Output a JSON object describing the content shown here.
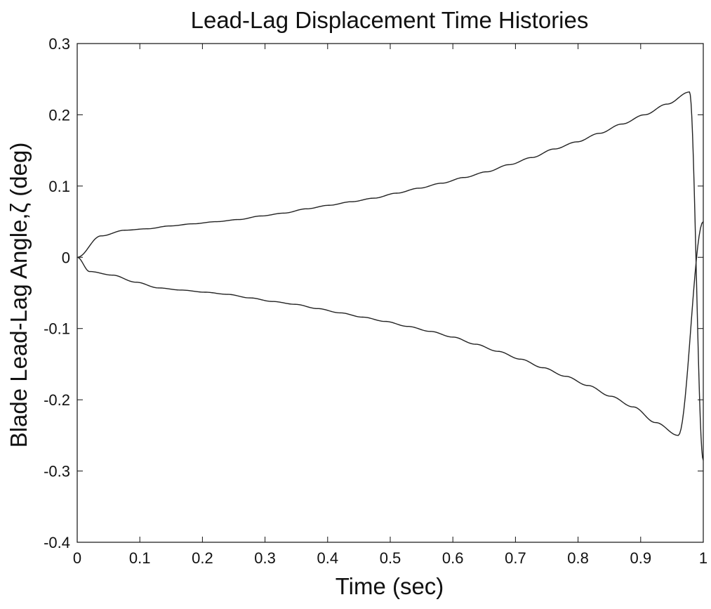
{
  "chart_data": {
    "type": "line",
    "title": "Lead-Lag Displacement Time Histories",
    "xlabel": "Time (sec)",
    "ylabel": "Blade Lead-Lag Angle,ζ  (deg)",
    "xlim": [
      0,
      1
    ],
    "ylim": [
      -0.4,
      0.3
    ],
    "xticks": [
      "0",
      "0.1",
      "0.2",
      "0.3",
      "0.4",
      "0.5",
      "0.6",
      "0.7",
      "0.8",
      "0.9",
      "1"
    ],
    "xtick_values": [
      0,
      0.1,
      0.2,
      0.3,
      0.4,
      0.5,
      0.6,
      0.7,
      0.8,
      0.9,
      1
    ],
    "yticks": [
      "0.3",
      "0.2",
      "0.1",
      "0",
      "-0.1",
      "-0.2",
      "-0.3",
      "-0.4"
    ],
    "ytick_values": [
      0.3,
      0.2,
      0.1,
      0,
      -0.1,
      -0.2,
      -0.3,
      -0.4
    ],
    "grid": false,
    "series_color": "#222222",
    "series": [
      {
        "x": [
          0,
          0.038,
          0.076,
          0.112,
          0.148,
          0.185,
          0.222,
          0.258,
          0.294,
          0.33,
          0.366,
          0.402,
          0.438,
          0.474,
          0.51,
          0.546,
          0.582,
          0.618,
          0.654,
          0.69,
          0.726,
          0.762,
          0.798,
          0.834,
          0.87,
          0.906,
          0.942,
          0.978,
          1.0
        ],
        "y": [
          0,
          0.03,
          0.038,
          0.04,
          0.044,
          0.047,
          0.05,
          0.053,
          0.058,
          0.062,
          0.068,
          0.073,
          0.078,
          0.083,
          0.09,
          0.097,
          0.104,
          0.112,
          0.12,
          0.13,
          0.14,
          0.152,
          0.162,
          0.174,
          0.187,
          0.2,
          0.215,
          0.232,
          -0.285
        ]
      },
      {
        "x": [
          0,
          0.02,
          0.056,
          0.094,
          0.13,
          0.166,
          0.204,
          0.24,
          0.276,
          0.312,
          0.348,
          0.384,
          0.42,
          0.456,
          0.492,
          0.528,
          0.564,
          0.6,
          0.636,
          0.672,
          0.708,
          0.744,
          0.78,
          0.816,
          0.852,
          0.888,
          0.924,
          0.96,
          1.0
        ],
        "y": [
          0,
          -0.02,
          -0.025,
          -0.035,
          -0.043,
          -0.046,
          -0.049,
          -0.052,
          -0.057,
          -0.062,
          -0.066,
          -0.072,
          -0.078,
          -0.084,
          -0.09,
          -0.097,
          -0.104,
          -0.112,
          -0.122,
          -0.132,
          -0.143,
          -0.155,
          -0.167,
          -0.18,
          -0.195,
          -0.21,
          -0.232,
          -0.25,
          0.05
        ]
      }
    ]
  }
}
